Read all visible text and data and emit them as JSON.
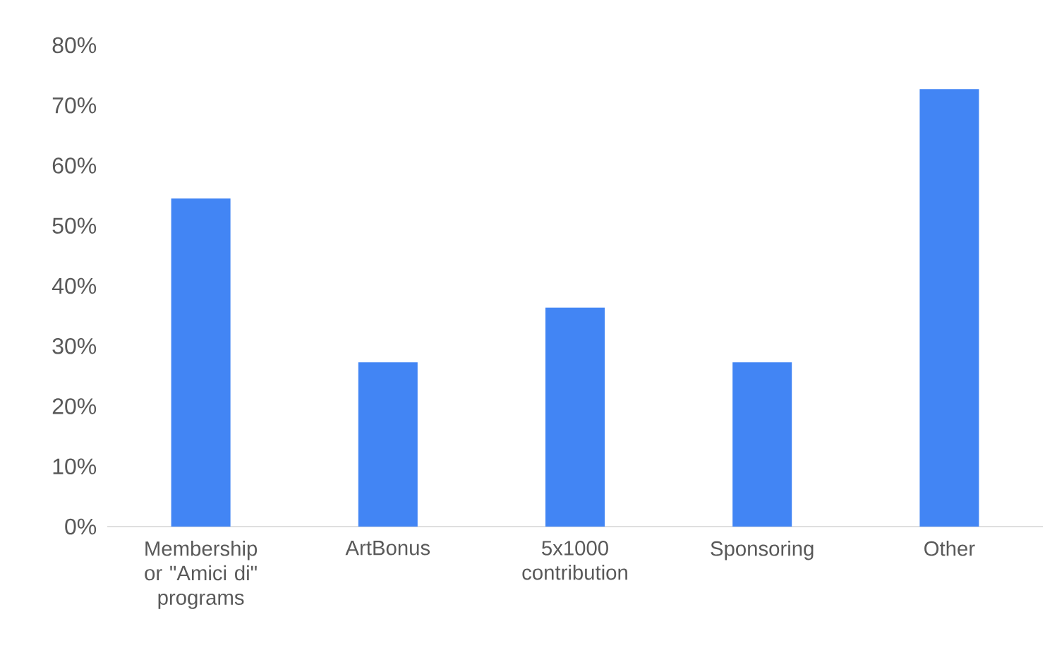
{
  "chart_data": {
    "type": "bar",
    "categories": [
      "Membership or \"Amici di\" programs",
      "ArtBonus",
      "5x1000 contribution",
      "Sponsoring",
      "Other"
    ],
    "values": [
      54.5,
      27.3,
      36.4,
      27.3,
      72.7
    ],
    "ylim": [
      0,
      80
    ],
    "yticks": [
      {
        "value": 0,
        "label": "0%"
      },
      {
        "value": 10,
        "label": "10%"
      },
      {
        "value": 20,
        "label": "20%"
      },
      {
        "value": 30,
        "label": "30%"
      },
      {
        "value": 40,
        "label": "40%"
      },
      {
        "value": 50,
        "label": "50%"
      },
      {
        "value": 60,
        "label": "60%"
      },
      {
        "value": 70,
        "label": "70%"
      },
      {
        "value": 80,
        "label": "80%"
      }
    ],
    "color": "#4285f4"
  }
}
